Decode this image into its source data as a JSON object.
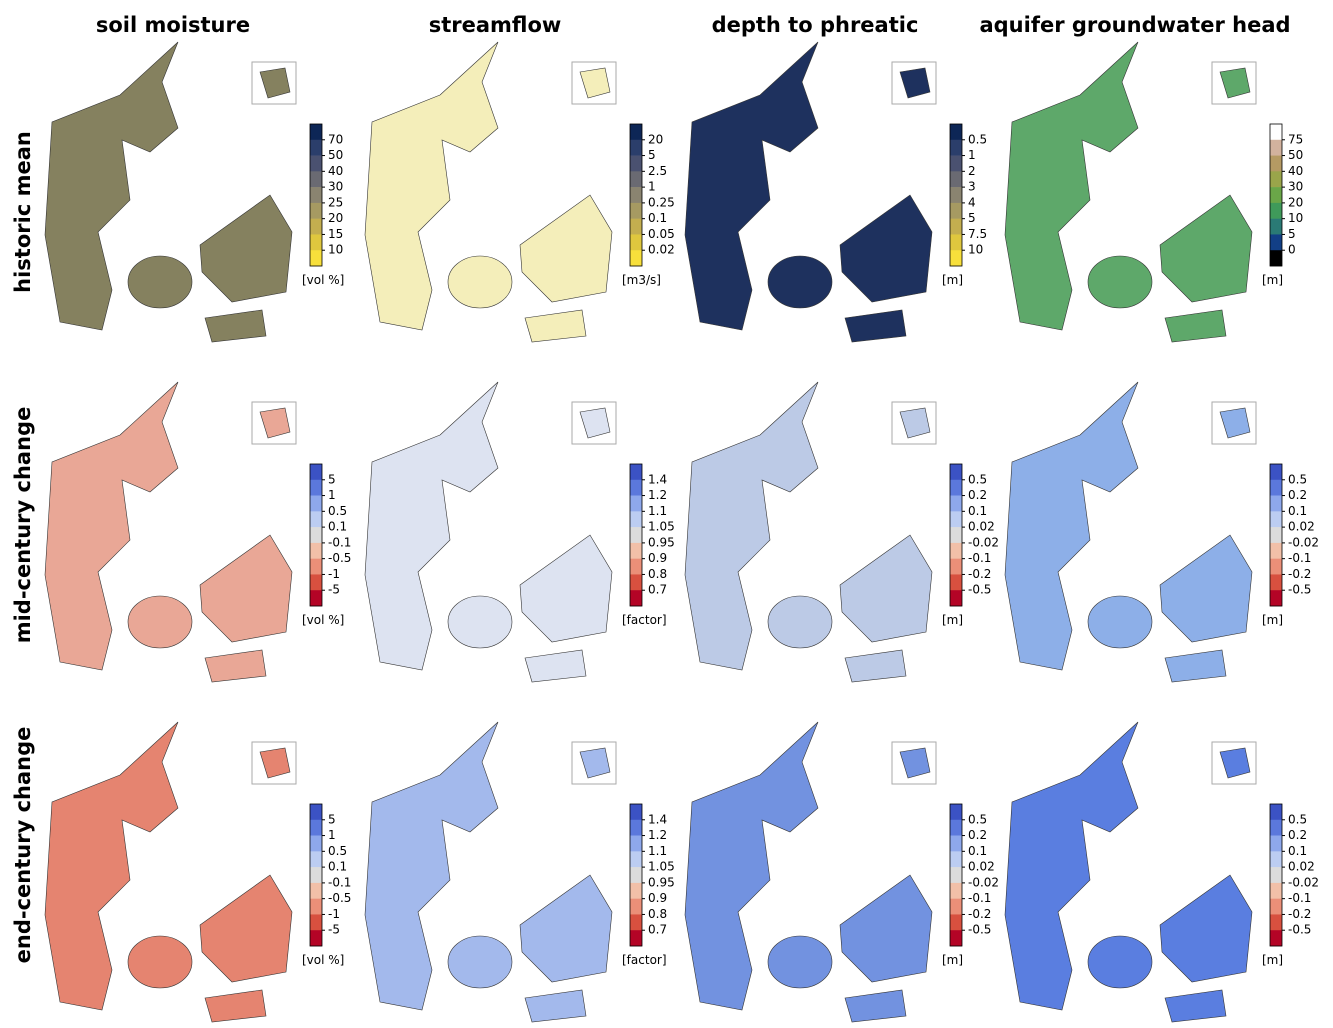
{
  "columns": [
    "soil moisture",
    "streamflow",
    "depth to phreatic",
    "aquifer groundwater head"
  ],
  "rows": [
    "historic mean",
    "mid-century change",
    "end-century change"
  ],
  "panels": [
    [
      {
        "unit": "[vol %]",
        "fill": "#85815f",
        "ticks": [
          "70",
          "50",
          "40",
          "30",
          "25",
          "20",
          "15",
          "10"
        ],
        "colors": [
          "#0d2656",
          "#2b3e6b",
          "#4a5170",
          "#6a6a72",
          "#8a8470",
          "#a69a62",
          "#c3ae4f",
          "#dfc73e",
          "#f8e03b"
        ]
      },
      {
        "unit": "[m3/s]",
        "fill": "#f4eeba",
        "ticks": [
          "20",
          "5",
          "2.5",
          "1",
          "0.25",
          "0.1",
          "0.05",
          "0.02"
        ],
        "colors": [
          "#0d2656",
          "#2b3e6b",
          "#4a5170",
          "#6a6a72",
          "#8a8470",
          "#a69a62",
          "#c3ae4f",
          "#dfc73e",
          "#f8e03b"
        ]
      },
      {
        "unit": "[m]",
        "fill": "#1e315e",
        "ticks": [
          "0.5",
          "1",
          "2",
          "3",
          "4",
          "5",
          "7.5",
          "10"
        ],
        "colors": [
          "#0d2656",
          "#2b3e6b",
          "#4a5170",
          "#6a6a72",
          "#8a8470",
          "#a69a62",
          "#c3ae4f",
          "#dfc73e",
          "#f8e03b"
        ]
      },
      {
        "unit": "[m]",
        "fill": "#5ea86a",
        "ticks": [
          "75",
          "50",
          "40",
          "30",
          "20",
          "10",
          "5",
          "0"
        ],
        "colors": [
          "#ffffff",
          "#d2b29e",
          "#b59a63",
          "#9aa54a",
          "#6aa648",
          "#3f9a5a",
          "#2a7a75",
          "#123f86",
          "#000000"
        ]
      }
    ],
    [
      {
        "unit": "[vol %]",
        "fill": "#e9a796",
        "ticks": [
          "5",
          "1",
          "0.5",
          "0.1",
          "-0.1",
          "-0.5",
          "-1",
          "-5"
        ],
        "colors": [
          "#3b52c4",
          "#5b78dc",
          "#8ea8ec",
          "#bccdf2",
          "#dcdcdc",
          "#f2c0a8",
          "#eb8f78",
          "#d8503f",
          "#b40426"
        ]
      },
      {
        "unit": "[factor]",
        "fill": "#dde3f1",
        "ticks": [
          "1.4",
          "1.2",
          "1.1",
          "1.05",
          "0.95",
          "0.9",
          "0.8",
          "0.7"
        ],
        "colors": [
          "#3b52c4",
          "#5b78dc",
          "#8ea8ec",
          "#bccdf2",
          "#dcdcdc",
          "#f2c0a8",
          "#eb8f78",
          "#d8503f",
          "#b40426"
        ]
      },
      {
        "unit": "[m]",
        "fill": "#bccae6",
        "ticks": [
          "0.5",
          "0.2",
          "0.1",
          "0.02",
          "-0.02",
          "-0.1",
          "-0.2",
          "-0.5"
        ],
        "colors": [
          "#3b52c4",
          "#5b78dc",
          "#8ea8ec",
          "#bccdf2",
          "#dcdcdc",
          "#f2c0a8",
          "#eb8f78",
          "#d8503f",
          "#b40426"
        ]
      },
      {
        "unit": "[m]",
        "fill": "#8dafe8",
        "ticks": [
          "0.5",
          "0.2",
          "0.1",
          "0.02",
          "-0.02",
          "-0.1",
          "-0.2",
          "-0.5"
        ],
        "colors": [
          "#3b52c4",
          "#5b78dc",
          "#8ea8ec",
          "#bccdf2",
          "#dcdcdc",
          "#f2c0a8",
          "#eb8f78",
          "#d8503f",
          "#b40426"
        ]
      }
    ],
    [
      {
        "unit": "[vol %]",
        "fill": "#e58470",
        "ticks": [
          "5",
          "1",
          "0.5",
          "0.1",
          "-0.1",
          "-0.5",
          "-1",
          "-5"
        ],
        "colors": [
          "#3b52c4",
          "#5b78dc",
          "#8ea8ec",
          "#bccdf2",
          "#dcdcdc",
          "#f2c0a8",
          "#eb8f78",
          "#d8503f",
          "#b40426"
        ]
      },
      {
        "unit": "[factor]",
        "fill": "#a3b9ec",
        "ticks": [
          "1.4",
          "1.2",
          "1.1",
          "1.05",
          "0.95",
          "0.9",
          "0.8",
          "0.7"
        ],
        "colors": [
          "#3b52c4",
          "#5b78dc",
          "#8ea8ec",
          "#bccdf2",
          "#dcdcdc",
          "#f2c0a8",
          "#eb8f78",
          "#d8503f",
          "#b40426"
        ]
      },
      {
        "unit": "[m]",
        "fill": "#7292e0",
        "ticks": [
          "0.5",
          "0.2",
          "0.1",
          "0.02",
          "-0.02",
          "-0.1",
          "-0.2",
          "-0.5"
        ],
        "colors": [
          "#3b52c4",
          "#5b78dc",
          "#8ea8ec",
          "#bccdf2",
          "#dcdcdc",
          "#f2c0a8",
          "#eb8f78",
          "#d8503f",
          "#b40426"
        ]
      },
      {
        "unit": "[m]",
        "fill": "#5a7ee0",
        "ticks": [
          "0.5",
          "0.2",
          "0.1",
          "0.02",
          "-0.02",
          "-0.1",
          "-0.2",
          "-0.5"
        ],
        "colors": [
          "#3b52c4",
          "#5b78dc",
          "#8ea8ec",
          "#bccdf2",
          "#dcdcdc",
          "#f2c0a8",
          "#eb8f78",
          "#d8503f",
          "#b40426"
        ]
      }
    ]
  ]
}
